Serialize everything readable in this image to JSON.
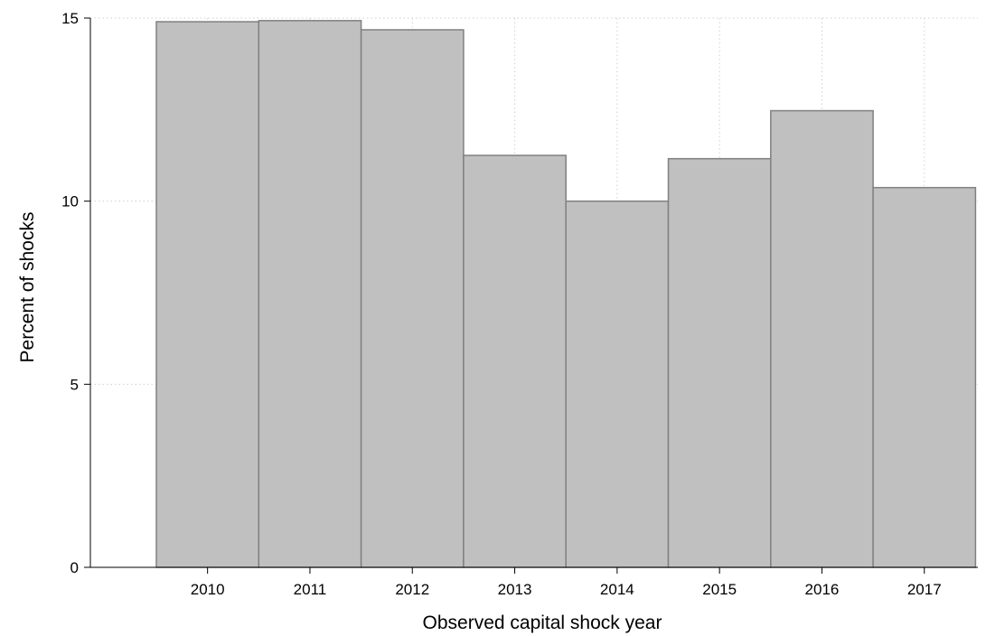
{
  "chart_data": {
    "type": "bar",
    "title": "",
    "xlabel": "Observed capital shock year",
    "ylabel": "Percent of shocks",
    "categories": [
      "2010",
      "2011",
      "2012",
      "2013",
      "2014",
      "2015",
      "2016",
      "2017"
    ],
    "values": [
      14.9,
      14.93,
      14.68,
      11.25,
      10.0,
      11.16,
      12.47,
      10.37
    ],
    "ylim": [
      0,
      15
    ],
    "yticks": [
      "0",
      "5",
      "10",
      "15"
    ],
    "grid": true,
    "bar_fill": "#c0c0c0",
    "bar_stroke": "#808080"
  }
}
